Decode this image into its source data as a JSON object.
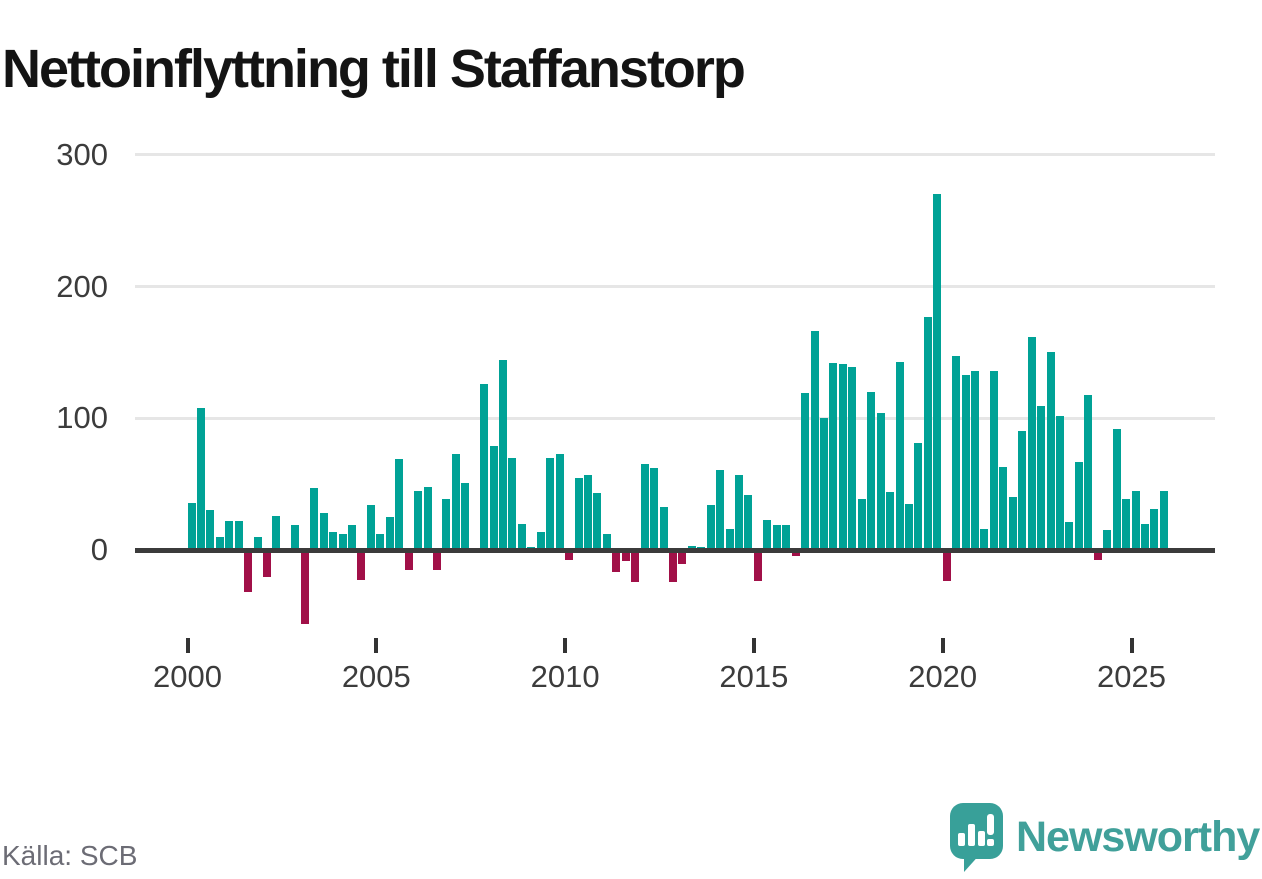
{
  "title": "Nettoinflyttning till Staffanstorp",
  "source": "Källa: SCB",
  "logo": {
    "text": "Newsworthy",
    "icon": "speech-bubble-with-bar-chart-and-exclamation"
  },
  "colors": {
    "positive_bar": "#00A296",
    "negative_bar": "#A11048",
    "gridline": "#e6e6e6",
    "zero_axis": "#3b3b3b",
    "title_text": "#141414",
    "axis_label": "#3c3c3c",
    "source_text": "#6c6c75",
    "logo_teal": "#38a099"
  },
  "chart_data": {
    "type": "bar",
    "title": "Nettoinflyttning till Staffanstorp",
    "frequency": "quarterly",
    "xlabel": "",
    "ylabel": "",
    "ylim": [
      -60,
      310
    ],
    "yticks": [
      0,
      100,
      200,
      300
    ],
    "x_tick_years": [
      2000,
      2005,
      2010,
      2015,
      2020,
      2025
    ],
    "grid": "horizontal",
    "legend": "none",
    "values_by_year": {
      "2000": [
        36,
        108,
        30,
        10
      ],
      "2001": [
        22,
        22,
        -30,
        10
      ],
      "2002": [
        -19,
        26,
        0,
        19
      ],
      "2003": [
        -55,
        47,
        28,
        14
      ],
      "2004": [
        12,
        19,
        -21,
        34
      ],
      "2005": [
        12,
        25,
        69,
        -14
      ],
      "2006": [
        45,
        48,
        -14,
        39
      ],
      "2007": [
        73,
        51,
        0,
        126
      ],
      "2008": [
        79,
        144,
        70,
        20
      ],
      "2009": [
        2,
        14,
        70,
        73
      ],
      "2010": [
        -6,
        55,
        57,
        43
      ],
      "2011": [
        12,
        -15,
        -7,
        -23
      ],
      "2012": [
        65,
        62,
        33,
        -23
      ],
      "2013": [
        -9,
        3,
        2,
        34
      ],
      "2014": [
        61,
        16,
        57,
        42
      ],
      "2015": [
        -22,
        23,
        19,
        19
      ],
      "2016": [
        -3,
        119,
        166,
        100
      ],
      "2017": [
        142,
        141,
        139,
        39
      ],
      "2018": [
        120,
        104,
        44,
        143
      ],
      "2019": [
        35,
        81,
        177,
        270
      ],
      "2020": [
        -22,
        147,
        133,
        136
      ],
      "2021": [
        16,
        136,
        63,
        40
      ],
      "2022": [
        90,
        162,
        109,
        150
      ],
      "2023": [
        102,
        21,
        67,
        118
      ],
      "2024": [
        -6,
        15,
        92,
        39
      ],
      "2025": [
        45,
        20,
        31,
        45
      ]
    }
  }
}
